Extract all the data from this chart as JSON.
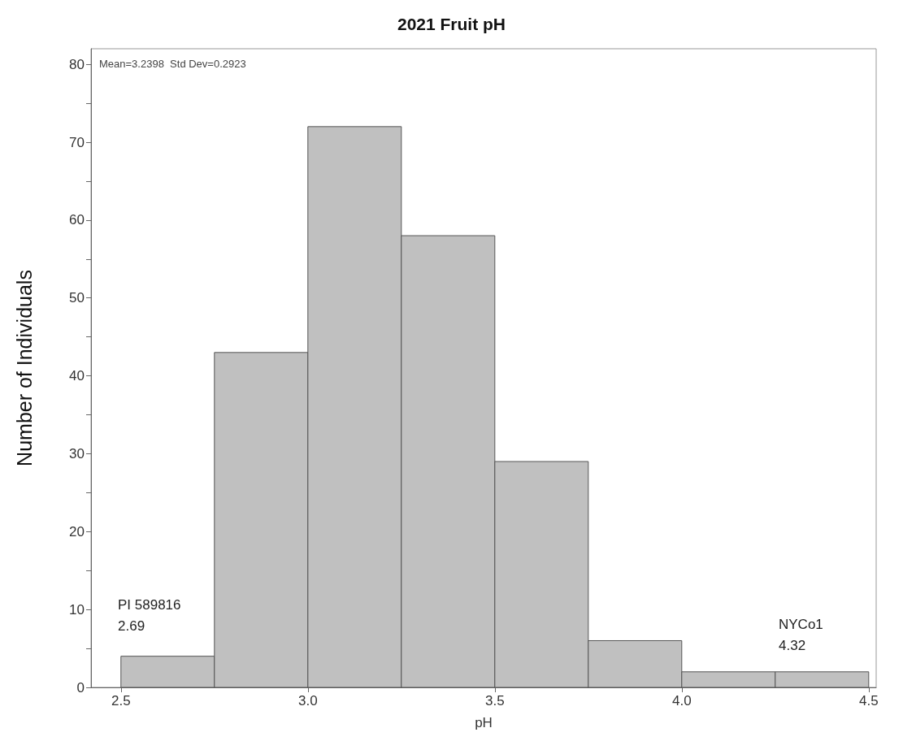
{
  "chart_data": {
    "type": "histogram",
    "title": "2021 Fruit pH",
    "xlabel": "pH",
    "ylabel": "Number of Individuals",
    "bins": [
      2.5,
      2.75,
      3.0,
      3.25,
      3.5,
      3.75,
      4.0,
      4.25,
      4.5
    ],
    "values": [
      4,
      43,
      72,
      58,
      29,
      6,
      2,
      2
    ],
    "color": "#c0c0c0",
    "xlim": [
      2.42,
      4.52
    ],
    "xticks": [
      2.5,
      {
        "value": 3,
        "label": "3.0"
      },
      3.5,
      {
        "value": 4,
        "label": "4.0"
      },
      4.5
    ],
    "ylim": [
      0,
      82
    ],
    "yticks": [
      0,
      {
        "value": 5,
        "label": null
      },
      10,
      {
        "value": 15,
        "label": null
      },
      20,
      {
        "value": 25,
        "label": null
      },
      30,
      {
        "value": 35,
        "label": null
      },
      40,
      {
        "value": 45,
        "label": null
      },
      50,
      {
        "value": 55,
        "label": null
      },
      60,
      {
        "value": 65,
        "label": null
      },
      70,
      {
        "value": 75,
        "label": null
      },
      80
    ],
    "annotations": [
      "Mean=3.2398  Std Dev=0.2923",
      "PI 589816\n2.69",
      "NYCo1\n4.32"
    ],
    "grid": false
  }
}
